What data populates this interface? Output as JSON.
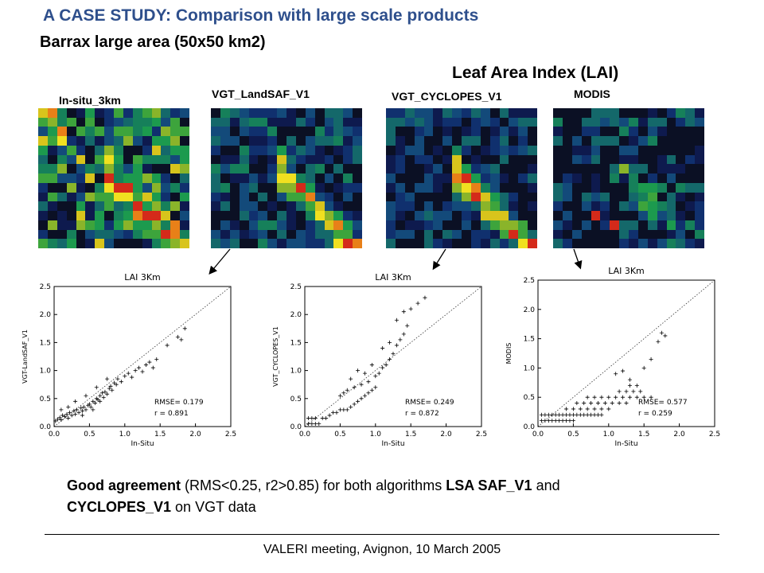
{
  "slide": {
    "title": "A CASE STUDY: Comparison with large scale products",
    "subtitle": "Barrax large area (50x50 km2)",
    "section_title": "Leaf Area Index (LAI)",
    "footer": "VALERI meeting, Avignon, 10 March 2005"
  },
  "maps": [
    {
      "label": "In-situ_3km"
    },
    {
      "label": "VGT_LandSAF_V1"
    },
    {
      "label": "VGT_CYCLOPES_V1"
    },
    {
      "label": "MODIS"
    }
  ],
  "conclusion": {
    "strong1": "Good agreement",
    "text1": " (RMS<0.25, r2>0.85) for both algorithms ",
    "strong2": "LSA SAF_V1",
    "text2": " and ",
    "strong3": "CYCLOPES_V1",
    "text3": " on VGT data"
  },
  "chart_data": [
    {
      "type": "scatter",
      "title": "LAI 3Km",
      "xlabel": "In-Situ",
      "ylabel": "VGT-LandSAF_V1",
      "xlim": [
        0,
        2.5
      ],
      "ylim": [
        0,
        2.5
      ],
      "x_ticks": [
        "0.0",
        "0.5",
        "1.0",
        "1.5",
        "2.0",
        "2.5"
      ],
      "y_ticks": [
        "0.0",
        "0.5",
        "1.0",
        "1.5",
        "2.0",
        "2.5"
      ],
      "identity_line": true,
      "marker": "+",
      "stats": [
        "RMSE= 0.179",
        "r = 0.891"
      ],
      "points": [
        [
          0.02,
          0.1
        ],
        [
          0.05,
          0.13
        ],
        [
          0.08,
          0.16
        ],
        [
          0.1,
          0.12
        ],
        [
          0.12,
          0.2
        ],
        [
          0.15,
          0.18
        ],
        [
          0.18,
          0.22
        ],
        [
          0.2,
          0.15
        ],
        [
          0.22,
          0.25
        ],
        [
          0.25,
          0.2
        ],
        [
          0.28,
          0.28
        ],
        [
          0.3,
          0.22
        ],
        [
          0.32,
          0.3
        ],
        [
          0.35,
          0.25
        ],
        [
          0.38,
          0.33
        ],
        [
          0.4,
          0.28
        ],
        [
          0.42,
          0.35
        ],
        [
          0.45,
          0.3
        ],
        [
          0.48,
          0.38
        ],
        [
          0.5,
          0.4
        ],
        [
          0.52,
          0.35
        ],
        [
          0.55,
          0.45
        ],
        [
          0.58,
          0.42
        ],
        [
          0.6,
          0.5
        ],
        [
          0.62,
          0.48
        ],
        [
          0.65,
          0.55
        ],
        [
          0.68,
          0.6
        ],
        [
          0.7,
          0.52
        ],
        [
          0.72,
          0.62
        ],
        [
          0.75,
          0.58
        ],
        [
          0.78,
          0.68
        ],
        [
          0.8,
          0.72
        ],
        [
          0.82,
          0.65
        ],
        [
          0.85,
          0.78
        ],
        [
          0.88,
          0.75
        ],
        [
          0.9,
          0.85
        ],
        [
          0.95,
          0.8
        ],
        [
          1.0,
          0.9
        ],
        [
          1.05,
          0.95
        ],
        [
          1.1,
          0.88
        ],
        [
          1.15,
          1.0
        ],
        [
          1.2,
          1.05
        ],
        [
          1.25,
          0.98
        ],
        [
          1.3,
          1.1
        ],
        [
          1.35,
          1.15
        ],
        [
          1.4,
          1.05
        ],
        [
          1.45,
          1.2
        ],
        [
          1.6,
          1.45
        ],
        [
          1.75,
          1.6
        ],
        [
          1.8,
          1.55
        ],
        [
          1.85,
          1.75
        ],
        [
          0.1,
          0.3
        ],
        [
          0.2,
          0.35
        ],
        [
          0.3,
          0.45
        ],
        [
          0.45,
          0.55
        ],
        [
          0.6,
          0.7
        ],
        [
          0.75,
          0.85
        ],
        [
          0.4,
          0.2
        ],
        [
          0.55,
          0.3
        ],
        [
          0.65,
          0.45
        ]
      ]
    },
    {
      "type": "scatter",
      "title": "LAI 3Km",
      "xlabel": "In-Situ",
      "ylabel": "VGT_CYCLOPES_V1",
      "xlim": [
        0,
        2.5
      ],
      "ylim": [
        0,
        2.5
      ],
      "x_ticks": [
        "0.0",
        "0.5",
        "1.0",
        "1.5",
        "2.0",
        "2.5"
      ],
      "y_ticks": [
        "0.0",
        "0.5",
        "1.0",
        "1.5",
        "2.0",
        "2.5"
      ],
      "identity_line": true,
      "marker": "+",
      "stats": [
        "RMSE= 0.249",
        "r = 0.872"
      ],
      "points": [
        [
          0.05,
          0.05
        ],
        [
          0.1,
          0.05
        ],
        [
          0.15,
          0.05
        ],
        [
          0.2,
          0.05
        ],
        [
          0.05,
          0.15
        ],
        [
          0.1,
          0.15
        ],
        [
          0.15,
          0.15
        ],
        [
          0.25,
          0.15
        ],
        [
          0.3,
          0.15
        ],
        [
          0.35,
          0.2
        ],
        [
          0.4,
          0.25
        ],
        [
          0.45,
          0.25
        ],
        [
          0.5,
          0.3
        ],
        [
          0.55,
          0.3
        ],
        [
          0.6,
          0.3
        ],
        [
          0.65,
          0.35
        ],
        [
          0.7,
          0.4
        ],
        [
          0.75,
          0.45
        ],
        [
          0.8,
          0.5
        ],
        [
          0.85,
          0.55
        ],
        [
          0.9,
          0.6
        ],
        [
          0.95,
          0.65
        ],
        [
          1.0,
          0.7
        ],
        [
          0.5,
          0.55
        ],
        [
          0.55,
          0.6
        ],
        [
          0.6,
          0.65
        ],
        [
          0.7,
          0.7
        ],
        [
          0.8,
          0.75
        ],
        [
          0.9,
          0.8
        ],
        [
          1.0,
          0.9
        ],
        [
          1.05,
          0.95
        ],
        [
          1.1,
          1.05
        ],
        [
          1.15,
          1.1
        ],
        [
          1.2,
          1.2
        ],
        [
          1.25,
          1.3
        ],
        [
          1.3,
          1.45
        ],
        [
          1.35,
          1.55
        ],
        [
          1.4,
          1.65
        ],
        [
          1.45,
          1.8
        ],
        [
          1.5,
          2.1
        ],
        [
          1.6,
          2.2
        ],
        [
          1.7,
          2.3
        ],
        [
          1.1,
          1.4
        ],
        [
          1.2,
          1.5
        ],
        [
          1.3,
          1.9
        ],
        [
          0.85,
          0.95
        ],
        [
          0.75,
          1.0
        ],
        [
          0.65,
          0.85
        ],
        [
          0.95,
          1.1
        ],
        [
          1.4,
          2.05
        ]
      ]
    },
    {
      "type": "scatter",
      "title": "LAI 3Km",
      "xlabel": "In-Situ",
      "ylabel": "MODIS",
      "xlim": [
        0,
        2.5
      ],
      "ylim": [
        0,
        2.5
      ],
      "x_ticks": [
        "0.0",
        "0.5",
        "1.0",
        "1.5",
        "2.0",
        "2.5"
      ],
      "y_ticks": [
        "0.0",
        "0.5",
        "1.0",
        "1.5",
        "2.0",
        "2.5"
      ],
      "identity_line": true,
      "marker": "+",
      "stats": [
        "RMSE= 0.577",
        "r = 0.259"
      ],
      "points": [
        [
          0.05,
          0.1
        ],
        [
          0.1,
          0.1
        ],
        [
          0.15,
          0.1
        ],
        [
          0.2,
          0.1
        ],
        [
          0.25,
          0.1
        ],
        [
          0.3,
          0.1
        ],
        [
          0.35,
          0.1
        ],
        [
          0.4,
          0.1
        ],
        [
          0.45,
          0.1
        ],
        [
          0.5,
          0.1
        ],
        [
          0.05,
          0.2
        ],
        [
          0.1,
          0.2
        ],
        [
          0.15,
          0.2
        ],
        [
          0.2,
          0.2
        ],
        [
          0.25,
          0.2
        ],
        [
          0.3,
          0.2
        ],
        [
          0.35,
          0.2
        ],
        [
          0.4,
          0.2
        ],
        [
          0.45,
          0.2
        ],
        [
          0.5,
          0.2
        ],
        [
          0.55,
          0.2
        ],
        [
          0.6,
          0.2
        ],
        [
          0.65,
          0.2
        ],
        [
          0.7,
          0.2
        ],
        [
          0.75,
          0.2
        ],
        [
          0.8,
          0.2
        ],
        [
          0.85,
          0.2
        ],
        [
          0.9,
          0.2
        ],
        [
          0.4,
          0.3
        ],
        [
          0.5,
          0.3
        ],
        [
          0.6,
          0.3
        ],
        [
          0.7,
          0.3
        ],
        [
          0.8,
          0.3
        ],
        [
          0.9,
          0.3
        ],
        [
          1.0,
          0.3
        ],
        [
          0.55,
          0.4
        ],
        [
          0.65,
          0.4
        ],
        [
          0.75,
          0.4
        ],
        [
          0.85,
          0.4
        ],
        [
          0.95,
          0.4
        ],
        [
          1.05,
          0.4
        ],
        [
          1.15,
          0.4
        ],
        [
          1.25,
          0.4
        ],
        [
          0.7,
          0.5
        ],
        [
          0.8,
          0.5
        ],
        [
          0.9,
          0.5
        ],
        [
          1.0,
          0.5
        ],
        [
          1.1,
          0.5
        ],
        [
          1.2,
          0.5
        ],
        [
          1.3,
          0.5
        ],
        [
          1.4,
          0.5
        ],
        [
          1.5,
          0.5
        ],
        [
          1.6,
          0.5
        ],
        [
          1.15,
          0.6
        ],
        [
          1.25,
          0.6
        ],
        [
          1.35,
          0.6
        ],
        [
          1.45,
          0.6
        ],
        [
          1.3,
          0.7
        ],
        [
          1.4,
          0.7
        ],
        [
          1.1,
          0.9
        ],
        [
          1.2,
          0.95
        ],
        [
          1.3,
          0.8
        ],
        [
          1.5,
          1.0
        ],
        [
          1.6,
          1.15
        ],
        [
          1.7,
          1.45
        ],
        [
          1.8,
          1.55
        ],
        [
          1.75,
          1.6
        ]
      ]
    }
  ]
}
